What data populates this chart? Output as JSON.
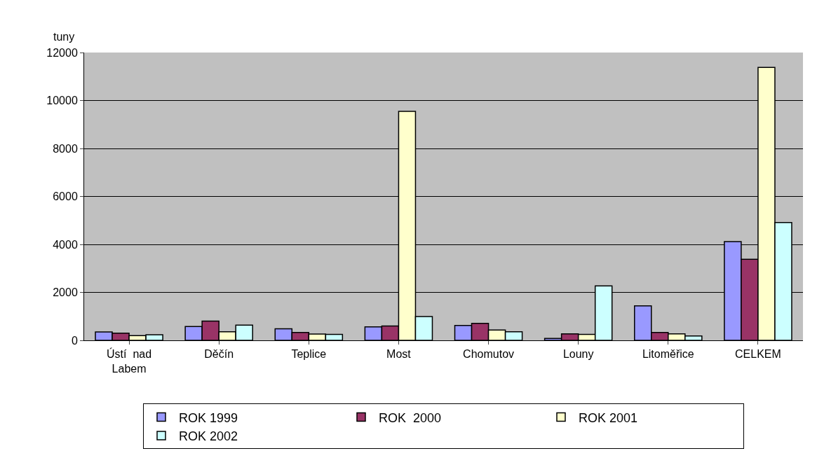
{
  "chart_data": {
    "type": "bar",
    "ylabel": "tuny",
    "categories": [
      "Ústí  nad Labem",
      "Děčín",
      "Teplice",
      "Most",
      "Chomutov",
      "Louny",
      "Litoměřice",
      "CELKEM"
    ],
    "series": [
      {
        "name": "ROK 1999",
        "color": "#9999ff",
        "values": [
          350,
          580,
          480,
          560,
          620,
          80,
          1440,
          4120
        ]
      },
      {
        "name": "ROK  2000",
        "color": "#993366",
        "values": [
          300,
          800,
          330,
          600,
          710,
          270,
          330,
          3380
        ]
      },
      {
        "name": "ROK 2001",
        "color": "#ffffcc",
        "values": [
          200,
          360,
          260,
          9550,
          430,
          250,
          270,
          11380
        ]
      },
      {
        "name": "ROK 2002",
        "color": "#ccffff",
        "values": [
          230,
          635,
          250,
          990,
          360,
          2270,
          180,
          4910
        ]
      }
    ],
    "ylim": [
      0,
      12000
    ],
    "yticks": [
      0,
      2000,
      4000,
      6000,
      8000,
      10000,
      12000
    ],
    "grid": "y",
    "legend": "bottom"
  }
}
